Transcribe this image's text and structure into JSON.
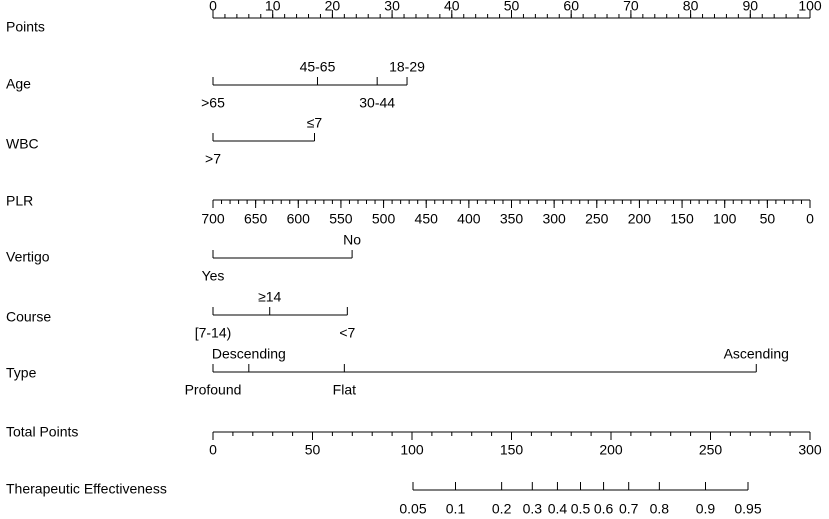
{
  "chart_data": {
    "type": "nomogram",
    "rows": [
      {
        "kind": "axis",
        "label": "Points",
        "lim": [
          0,
          100
        ],
        "ticks": [
          0,
          10,
          20,
          30,
          40,
          50,
          60,
          70,
          80,
          90,
          100
        ],
        "minor_ticks": [
          0,
          2,
          4,
          6,
          8,
          10,
          12,
          14,
          16,
          18,
          20,
          22,
          24,
          26,
          28,
          30,
          32,
          34,
          36,
          38,
          40,
          42,
          44,
          46,
          48,
          50,
          52,
          54,
          56,
          58,
          60,
          62,
          64,
          66,
          68,
          70,
          72,
          74,
          76,
          78,
          80,
          82,
          84,
          86,
          88,
          90,
          92,
          94,
          96,
          98,
          100
        ]
      },
      {
        "kind": "factor",
        "label": "Age",
        "levels": [
          {
            "label": ">65",
            "points": 0
          },
          {
            "label": "45-65",
            "points": 17.5
          },
          {
            "label": "30-44",
            "points": 27.5
          },
          {
            "label": "18-29",
            "points": 32.5
          }
        ]
      },
      {
        "kind": "factor",
        "label": "WBC",
        "levels": [
          {
            "label": ">7",
            "points": 0
          },
          {
            "label": "≤7",
            "points": 17
          }
        ]
      },
      {
        "kind": "axis",
        "label": "PLR",
        "lim": [
          700,
          0
        ],
        "ticks": [
          700,
          650,
          600,
          550,
          500,
          450,
          400,
          350,
          300,
          250,
          200,
          150,
          100,
          50,
          0
        ],
        "minor_ticks": [
          700,
          690,
          680,
          670,
          660,
          650,
          640,
          630,
          620,
          610,
          600,
          590,
          580,
          570,
          560,
          550,
          540,
          530,
          520,
          510,
          500,
          490,
          480,
          470,
          460,
          450,
          440,
          430,
          420,
          410,
          400,
          390,
          380,
          370,
          360,
          350,
          340,
          330,
          320,
          310,
          300,
          290,
          280,
          270,
          260,
          250,
          240,
          230,
          220,
          210,
          200,
          190,
          180,
          170,
          160,
          150,
          140,
          130,
          120,
          110,
          100,
          90,
          80,
          70,
          60,
          50,
          40,
          30,
          20,
          10,
          0
        ]
      },
      {
        "kind": "factor",
        "label": "Vertigo",
        "levels": [
          {
            "label": "Yes",
            "points": 0
          },
          {
            "label": "No",
            "points": 23.3
          }
        ]
      },
      {
        "kind": "factor",
        "label": "Course",
        "levels": [
          {
            "label": "[7-14)",
            "points": 0
          },
          {
            "label": "≥14",
            "points": 9.5
          },
          {
            "label": "<7",
            "points": 22.5
          }
        ]
      },
      {
        "kind": "factor",
        "label": "Type",
        "levels": [
          {
            "label": "Profound",
            "points": 0
          },
          {
            "label": "Descending",
            "points": 6
          },
          {
            "label": "Flat",
            "points": 22
          },
          {
            "label": "Ascending",
            "points": 91
          }
        ]
      },
      {
        "kind": "axis",
        "label": "Total Points",
        "lim": [
          0,
          300
        ],
        "ticks": [
          0,
          50,
          100,
          150,
          200,
          250,
          300
        ],
        "minor_ticks": [
          0,
          10,
          20,
          30,
          40,
          50,
          60,
          70,
          80,
          90,
          100,
          110,
          120,
          130,
          140,
          150,
          160,
          170,
          180,
          190,
          200,
          210,
          220,
          230,
          240,
          250,
          260,
          270,
          280,
          290,
          300
        ]
      },
      {
        "kind": "axis",
        "label": "Therapeutic Effectiveness",
        "lim": [
          0.05,
          0.95
        ],
        "scale": "logit",
        "ticks": [
          0.05,
          0.1,
          0.2,
          0.3,
          0.4,
          0.5,
          0.6,
          0.7,
          0.8,
          0.9,
          0.95
        ]
      }
    ]
  }
}
